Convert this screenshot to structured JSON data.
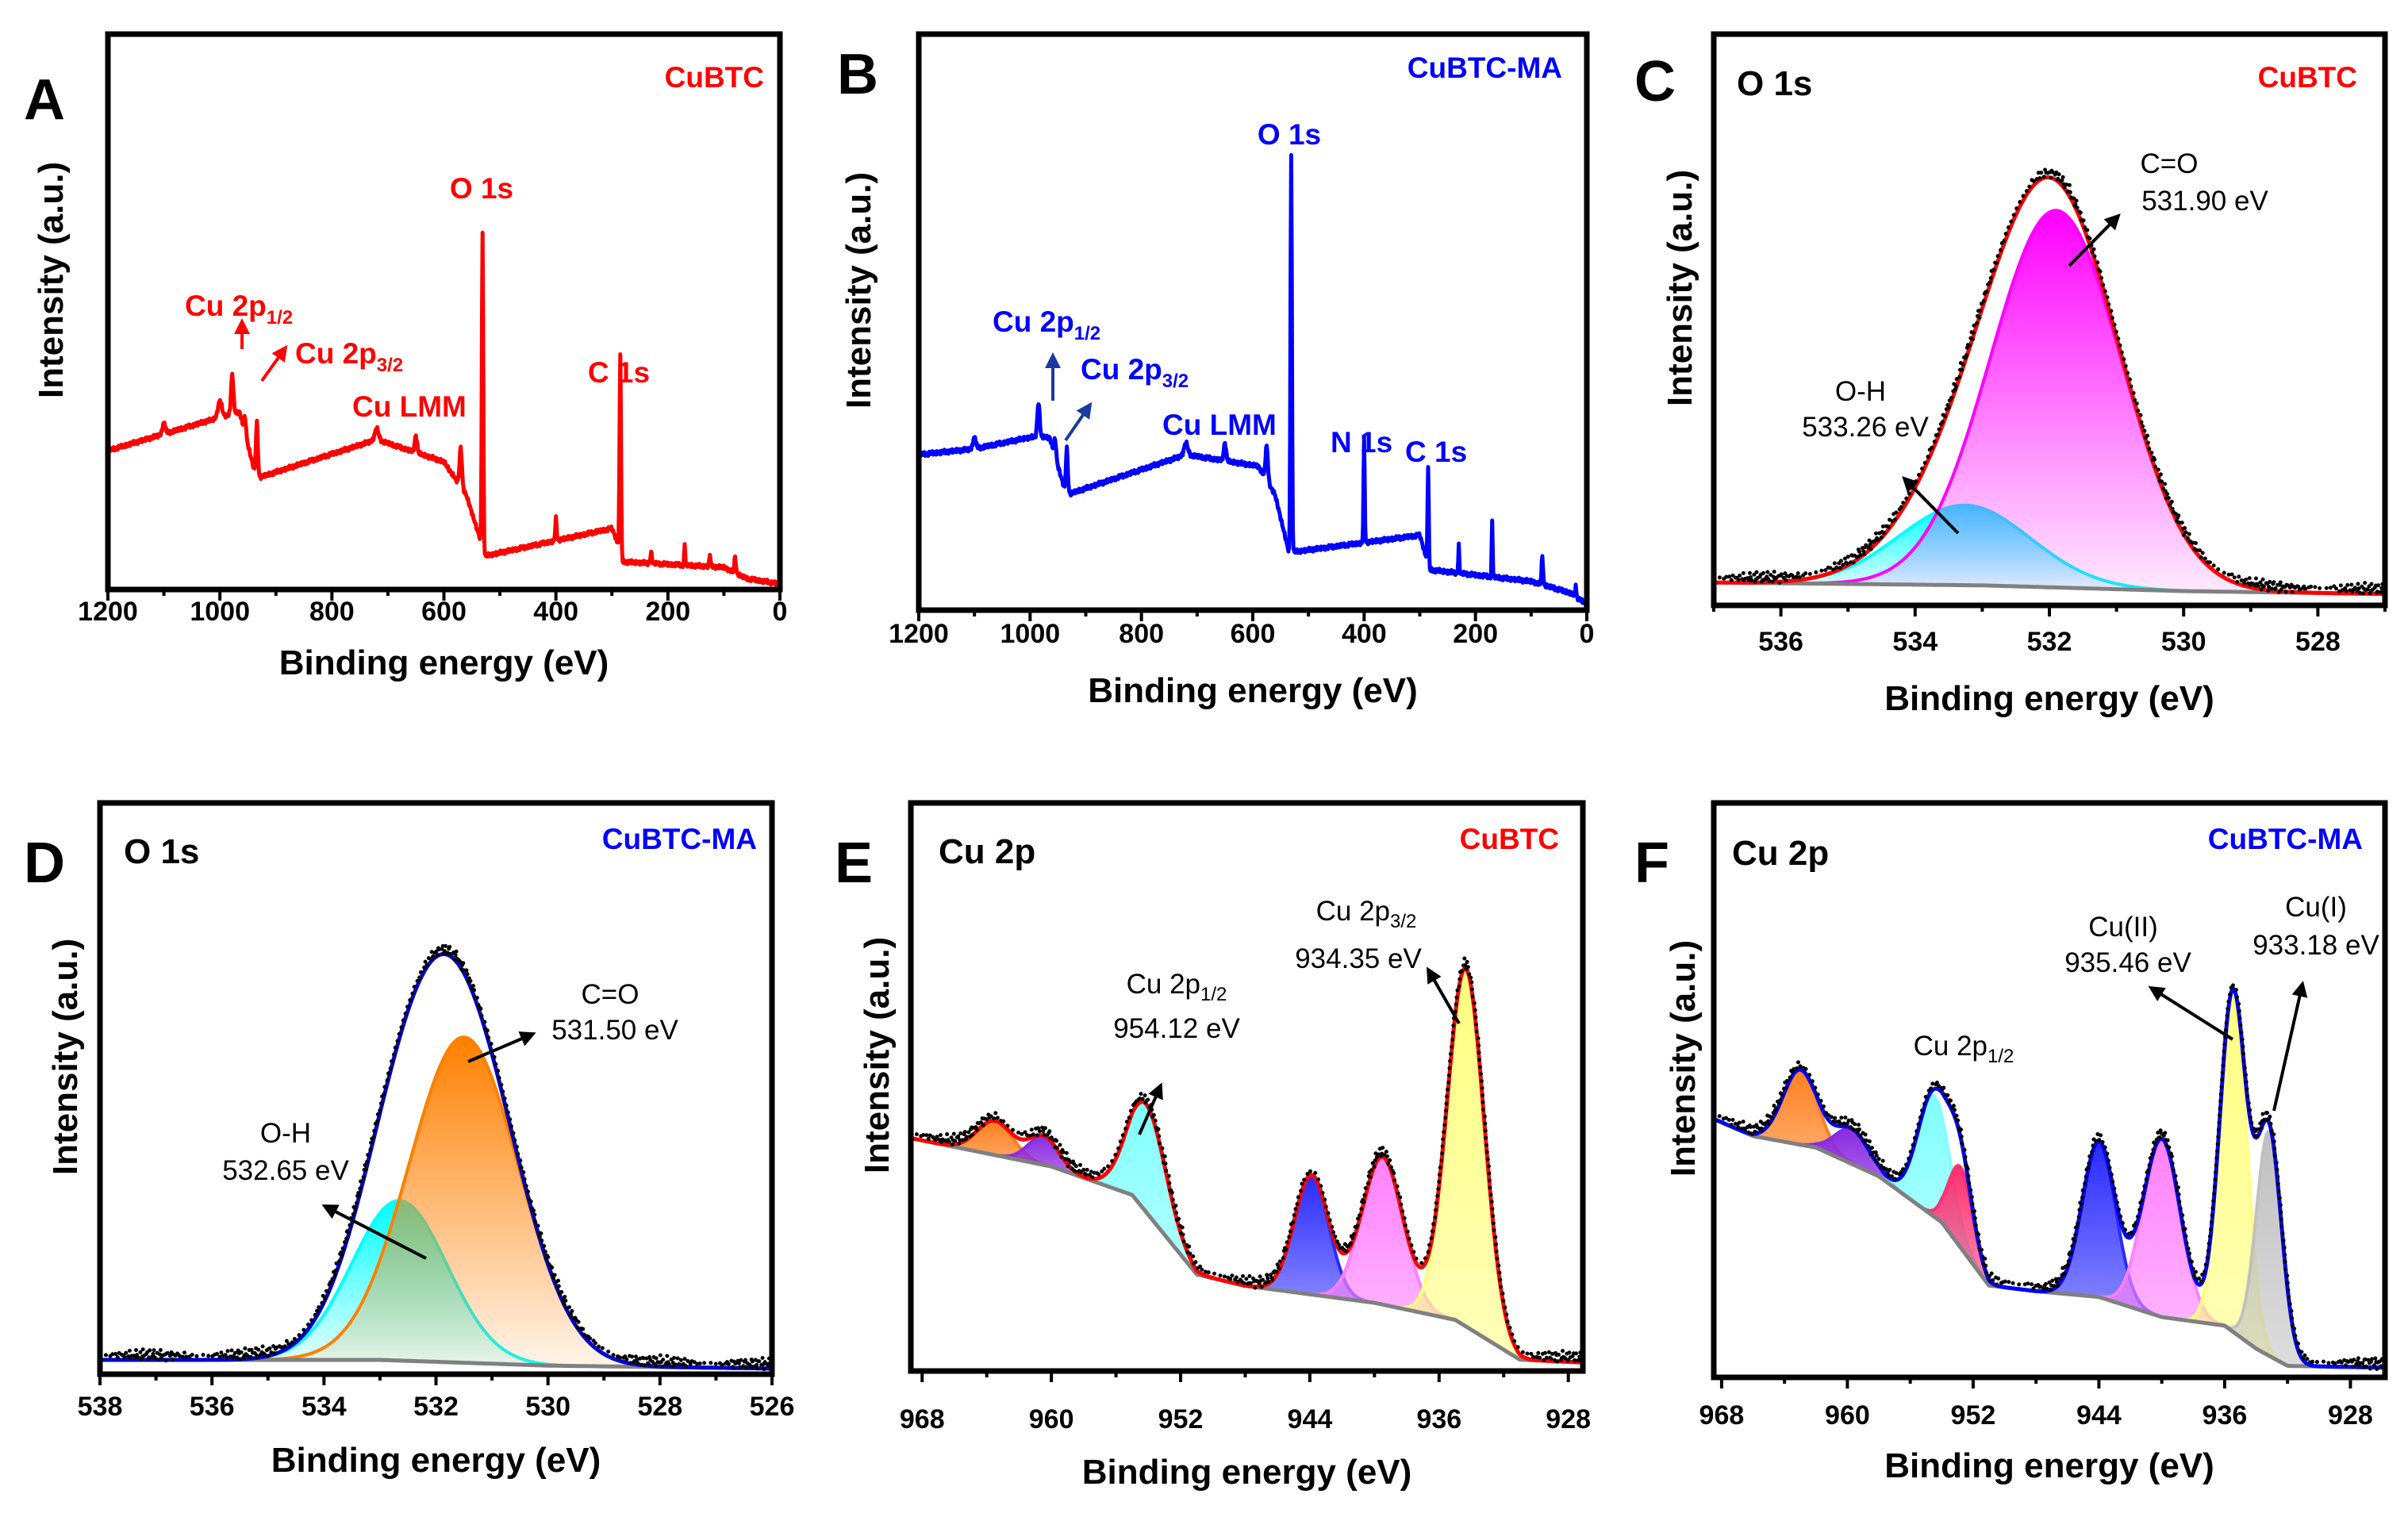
{
  "colors": {
    "cubtc": "#ff0000",
    "cubtc_ma": "#0000ff",
    "raw": "#000000",
    "baseline": "#808080"
  },
  "chart_data": [
    {
      "panel": "A",
      "type": "line",
      "sample": "CuBTC",
      "color": "#ff0000",
      "xlabel": "Binding energy (eV)",
      "ylabel": "Intensity (a.u.)",
      "xlim": [
        1200,
        0
      ],
      "ylim": [
        0,
        1
      ],
      "xticks": [
        1200,
        1000,
        800,
        600,
        400,
        200,
        0
      ],
      "minor_step": 100,
      "grid": false,
      "background": [
        [
          1200,
          0.25
        ],
        [
          1100,
          0.28
        ],
        [
          1000,
          0.31
        ],
        [
          965,
          0.32
        ],
        [
          935,
          0.2
        ],
        [
          720,
          0.27
        ],
        [
          600,
          0.23
        ],
        [
          560,
          0.17
        ],
        [
          535,
          0.09
        ],
        [
          528,
          0.06
        ],
        [
          300,
          0.11
        ],
        [
          288,
          0.08
        ],
        [
          282,
          0.05
        ],
        [
          100,
          0.04
        ],
        [
          60,
          0.02
        ],
        [
          0,
          0.01
        ]
      ],
      "peaks": [
        [
          1100,
          0.02,
          6
        ],
        [
          1000,
          0.03,
          8
        ],
        [
          978,
          0.07,
          5
        ],
        [
          955,
          0.03,
          4
        ],
        [
          934,
          0.1,
          4
        ],
        [
          720,
          0.02,
          8
        ],
        [
          650,
          0.03,
          5
        ],
        [
          570,
          0.07,
          5
        ],
        [
          531,
          0.57,
          3
        ],
        [
          400,
          0.04,
          3
        ],
        [
          285,
          0.36,
          3
        ],
        [
          230,
          0.02,
          3
        ],
        [
          170,
          0.04,
          2
        ],
        [
          125,
          0.02,
          3
        ],
        [
          80,
          0.03,
          3
        ]
      ],
      "labels": {
        "sample": "CuBTC",
        "o1s": "O 1s",
        "c1s": "C 1s",
        "culmm": "Cu LMM",
        "cu2p12": {
          "text": "Cu 2p",
          "sub": "1/2"
        },
        "cu2p32": {
          "text": "Cu 2p",
          "sub": "3/2"
        }
      }
    },
    {
      "panel": "B",
      "type": "line",
      "sample": "CuBTC-MA",
      "color": "#0000ff",
      "xlabel": "Binding energy (eV)",
      "ylabel": "Intensity (a.u.)",
      "xlim": [
        1200,
        0
      ],
      "ylim": [
        0,
        1
      ],
      "xticks": [
        1200,
        1000,
        800,
        600,
        400,
        200,
        0
      ],
      "minor_step": 100,
      "grid": false,
      "background": [
        [
          1200,
          0.27
        ],
        [
          1100,
          0.28
        ],
        [
          1000,
          0.3
        ],
        [
          965,
          0.3
        ],
        [
          935,
          0.2
        ],
        [
          720,
          0.27
        ],
        [
          590,
          0.25
        ],
        [
          560,
          0.2
        ],
        [
          535,
          0.1
        ],
        [
          300,
          0.13
        ],
        [
          288,
          0.09
        ],
        [
          282,
          0.07
        ],
        [
          100,
          0.05
        ],
        [
          30,
          0.03
        ],
        [
          0,
          0.01
        ]
      ],
      "peaks": [
        [
          1100,
          0.02,
          6
        ],
        [
          985,
          0.06,
          5
        ],
        [
          955,
          0.03,
          4
        ],
        [
          934,
          0.08,
          4
        ],
        [
          720,
          0.02,
          8
        ],
        [
          650,
          0.03,
          5
        ],
        [
          575,
          0.06,
          5
        ],
        [
          531,
          0.69,
          3
        ],
        [
          400,
          0.18,
          2.5
        ],
        [
          285,
          0.17,
          2.5
        ],
        [
          230,
          0.05,
          2
        ],
        [
          170,
          0.1,
          2
        ],
        [
          80,
          0.05,
          3
        ],
        [
          20,
          0.02,
          2
        ]
      ],
      "labels": {
        "sample": "CuBTC-MA",
        "o1s": "O 1s",
        "n1s": "N 1s",
        "c1s": "C 1s",
        "culmm": "Cu LMM",
        "cu2p12": {
          "text": "Cu 2p",
          "sub": "1/2"
        },
        "cu2p32": {
          "text": "Cu 2p",
          "sub": "3/2"
        }
      }
    },
    {
      "panel": "C",
      "type": "area",
      "title": "O 1s",
      "sample": "CuBTC",
      "envelope_color": "#ff0000",
      "xlabel": "Binding energy (eV)",
      "ylabel": "Intensity (a.u.)",
      "xlim": [
        537,
        527
      ],
      "ylim": [
        0,
        1
      ],
      "xticks": [
        536,
        534,
        532,
        530,
        528
      ],
      "minor_step": 1,
      "grid": false,
      "baseline": [
        [
          537,
          0.04
        ],
        [
          533,
          0.035
        ],
        [
          530,
          0.025
        ],
        [
          527,
          0.02
        ]
      ],
      "components": [
        {
          "name": "O-H",
          "center": 533.26,
          "height": 0.14,
          "fwhm": 2.3,
          "color": "#00ffff"
        },
        {
          "name": "C=O",
          "center": 531.9,
          "height": 0.66,
          "fwhm": 2.3,
          "color": "#ff00ff"
        }
      ],
      "labels": {
        "ch": {
          "name": "C=O",
          "value": "531.90 eV"
        },
        "oh": {
          "name": "O-H",
          "value": "533.26 eV"
        }
      }
    },
    {
      "panel": "D",
      "type": "area",
      "title": "O 1s",
      "sample": "CuBTC-MA",
      "envelope_color": "#0000cd",
      "xlabel": "Binding energy (eV)",
      "ylabel": "Intensity (a.u.)",
      "xlim": [
        538,
        526
      ],
      "ylim": [
        0,
        1
      ],
      "xticks": [
        538,
        536,
        534,
        532,
        530,
        528,
        526
      ],
      "minor_step": 1,
      "grid": false,
      "baseline": [
        [
          538,
          0.025
        ],
        [
          533,
          0.025
        ],
        [
          530,
          0.015
        ],
        [
          526,
          0.01
        ]
      ],
      "components": [
        {
          "name": "O-H",
          "center": 532.65,
          "height": 0.28,
          "fwhm": 2.0,
          "color": "#00ffff"
        },
        {
          "name": "C=O",
          "center": 531.5,
          "height": 0.57,
          "fwhm": 2.3,
          "color": "#ff7f00"
        }
      ],
      "labels": {
        "ch": {
          "name": "C=O",
          "value": "531.50 eV"
        },
        "oh": {
          "name": "O-H",
          "value": "532.65 eV"
        }
      }
    },
    {
      "panel": "E",
      "type": "area",
      "title": "Cu 2p",
      "sample": "CuBTC",
      "envelope_color": "#ff0000",
      "xlabel": "Binding energy (eV)",
      "ylabel": "Intensity (a.u.)",
      "xlim": [
        968.7,
        927.1
      ],
      "ylim": [
        0,
        1
      ],
      "xticks": [
        968,
        960,
        952,
        944,
        936,
        928
      ],
      "minor_step": 4,
      "grid": false,
      "baseline": [
        [
          968.7,
          0.41
        ],
        [
          960,
          0.36
        ],
        [
          955,
          0.31
        ],
        [
          951,
          0.17
        ],
        [
          948,
          0.15
        ],
        [
          940,
          0.12
        ],
        [
          935,
          0.09
        ],
        [
          931,
          0.02
        ],
        [
          927.1,
          0.015
        ]
      ],
      "components": [
        {
          "center": 963.5,
          "height": 0.06,
          "fwhm": 2.6,
          "color": "#ff7f1e"
        },
        {
          "center": 960.5,
          "height": 0.05,
          "fwhm": 2.2,
          "color": "#8a2be2"
        },
        {
          "center": 954.12,
          "height": 0.19,
          "fwhm": 2.8,
          "color": "#7fffff"
        },
        {
          "center": 943.9,
          "height": 0.21,
          "fwhm": 2.5,
          "color": "#2a2aff"
        },
        {
          "center": 939.5,
          "height": 0.26,
          "fwhm": 3.0,
          "color": "#ff80ff"
        },
        {
          "center": 934.35,
          "height": 0.63,
          "fwhm": 2.7,
          "color": "#ffff80"
        }
      ],
      "labels": {
        "p32": {
          "text": "Cu 2p",
          "sub": "3/2",
          "value": "934.35 eV"
        },
        "p12": {
          "text": "Cu 2p",
          "sub": "1/2",
          "value": "954.12 eV"
        }
      }
    },
    {
      "panel": "F",
      "type": "area",
      "title": "Cu 2p",
      "sample": "CuBTC-MA",
      "envelope_color": "#0000ff",
      "xlabel": "Binding energy (eV)",
      "ylabel": "Intensity (a.u.)",
      "xlim": [
        968.5,
        925.8
      ],
      "ylim": [
        0,
        1
      ],
      "xticks": [
        968,
        960,
        952,
        944,
        936,
        928
      ],
      "minor_step": 4,
      "grid": false,
      "baseline": [
        [
          968.5,
          0.45
        ],
        [
          966,
          0.42
        ],
        [
          962,
          0.4
        ],
        [
          958,
          0.35
        ],
        [
          954,
          0.27
        ],
        [
          951,
          0.16
        ],
        [
          948,
          0.15
        ],
        [
          944,
          0.14
        ],
        [
          940,
          0.105
        ],
        [
          936,
          0.09
        ],
        [
          934,
          0.05
        ],
        [
          932,
          0.02
        ],
        [
          925.8,
          0.017
        ]
      ],
      "components": [
        {
          "center": 963.0,
          "height": 0.13,
          "fwhm": 2.6,
          "color": "#ff8020"
        },
        {
          "center": 959.7,
          "height": 0.06,
          "fwhm": 2.6,
          "color": "#8a2be2"
        },
        {
          "center": 954.5,
          "height": 0.21,
          "fwhm": 2.4,
          "color": "#80ffff"
        },
        {
          "center": 952.8,
          "height": 0.14,
          "fwhm": 1.8,
          "color": "#ff3070"
        },
        {
          "center": 944.0,
          "height": 0.27,
          "fwhm": 2.5,
          "color": "#2a2aff"
        },
        {
          "center": 940.0,
          "height": 0.31,
          "fwhm": 2.8,
          "color": "#ff80ff"
        },
        {
          "center": 935.46,
          "height": 0.59,
          "fwhm": 2.0,
          "color": "#ffff80"
        },
        {
          "center": 933.18,
          "height": 0.39,
          "fwhm": 1.9,
          "color": "#c0c0c0"
        }
      ],
      "labels": {
        "cu2": {
          "name": "Cu(II)",
          "value": "935.46 eV"
        },
        "cu1": {
          "name": "Cu(I)",
          "value": "933.18 eV"
        },
        "p12": {
          "text": "Cu 2p",
          "sub": "1/2"
        }
      }
    }
  ]
}
